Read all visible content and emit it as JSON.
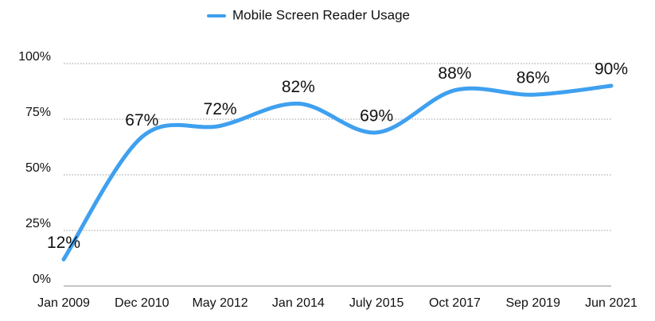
{
  "chart_data": {
    "type": "line",
    "categories": [
      "Jan 2009",
      "Dec 2010",
      "May 2012",
      "Jan 2014",
      "July 2015",
      "Oct 2017",
      "Sep 2019",
      "Jun 2021"
    ],
    "series": [
      {
        "name": "Mobile Screen Reader Usage",
        "color": "#3fa0ef",
        "values": [
          12,
          67,
          72,
          82,
          69,
          88,
          86,
          90
        ],
        "value_labels": [
          "12%",
          "67%",
          "72%",
          "82%",
          "69%",
          "88%",
          "86%",
          "90%"
        ]
      }
    ],
    "ylim": [
      0,
      100
    ],
    "yticks": [
      {
        "value": 0,
        "label": "0%"
      },
      {
        "value": 25,
        "label": "25%"
      },
      {
        "value": 50,
        "label": "50%"
      },
      {
        "value": 75,
        "label": "75%"
      },
      {
        "value": 100,
        "label": "100%"
      }
    ],
    "grid": true,
    "legend": "top"
  }
}
